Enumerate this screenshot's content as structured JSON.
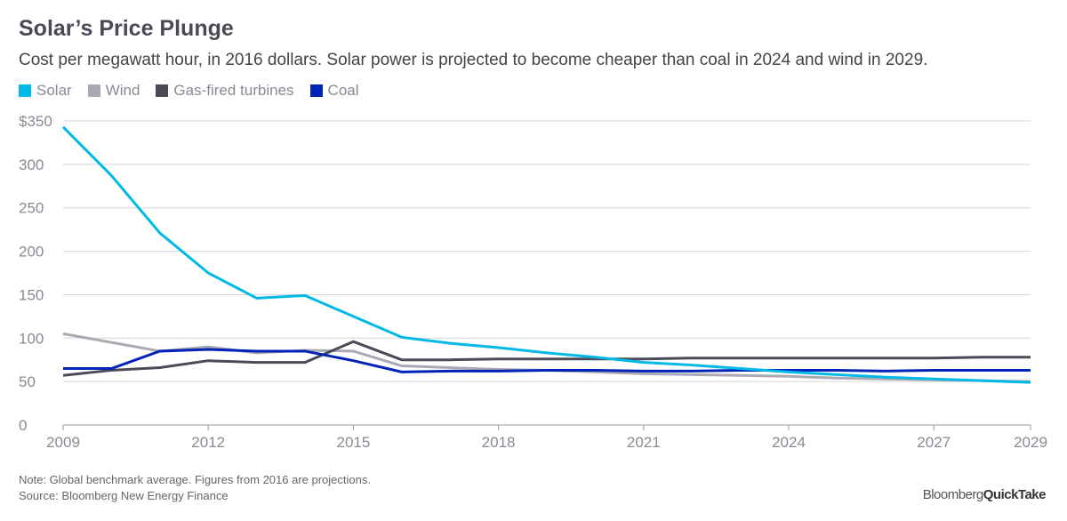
{
  "title": "Solar’s Price Plunge",
  "subtitle": "Cost per megawatt hour, in 2016 dollars. Solar power is projected to become cheaper than coal in 2024 and wind in 2029.",
  "note": "Note: Global benchmark average. Figures from 2016 are projections.",
  "source": "Source: Bloomberg New Energy Finance",
  "logo": {
    "part1": "Bloomberg",
    "part2": "QuickTake"
  },
  "chart_data": {
    "type": "line",
    "x": [
      2009,
      2010,
      2011,
      2012,
      2013,
      2014,
      2015,
      2016,
      2017,
      2018,
      2019,
      2020,
      2021,
      2022,
      2023,
      2024,
      2025,
      2026,
      2027,
      2028,
      2029
    ],
    "xlim": [
      2009,
      2029
    ],
    "xticks": [
      2009,
      2012,
      2015,
      2018,
      2021,
      2024,
      2027,
      2029
    ],
    "xtick_labels": [
      "2009",
      "2012",
      "2015",
      "2018",
      "2021",
      "2024",
      "2027",
      "2029"
    ],
    "ylim": [
      0,
      350
    ],
    "yticks": [
      0,
      50,
      100,
      150,
      200,
      250,
      300,
      350
    ],
    "ytick_labels": [
      "0",
      "50",
      "100",
      "150",
      "200",
      "250",
      "300",
      "$350"
    ],
    "grid": "horizontal",
    "legend_position": "top-left",
    "series": [
      {
        "name": "Solar",
        "color": "#00b9e7",
        "values": [
          343,
          287,
          221,
          175,
          146,
          149,
          125,
          101,
          94,
          89,
          83,
          78,
          72,
          69,
          65,
          61,
          58,
          55,
          53,
          51,
          49
        ]
      },
      {
        "name": "Wind",
        "color": "#aaa9b4",
        "values": [
          105,
          95,
          85,
          90,
          83,
          86,
          85,
          68,
          66,
          64,
          63,
          61,
          59,
          58,
          57,
          56,
          54,
          53,
          52,
          51,
          50
        ]
      },
      {
        "name": "Gas-fired turbines",
        "color": "#4b4a58",
        "values": [
          57,
          63,
          66,
          74,
          72,
          72,
          96,
          75,
          75,
          76,
          76,
          76,
          76,
          77,
          77,
          77,
          77,
          77,
          77,
          78,
          78
        ]
      },
      {
        "name": "Coal",
        "color": "#0023b8",
        "values": [
          65,
          65,
          85,
          87,
          85,
          85,
          74,
          61,
          62,
          62,
          63,
          63,
          62,
          62,
          63,
          63,
          63,
          62,
          63,
          63,
          63
        ]
      }
    ]
  }
}
